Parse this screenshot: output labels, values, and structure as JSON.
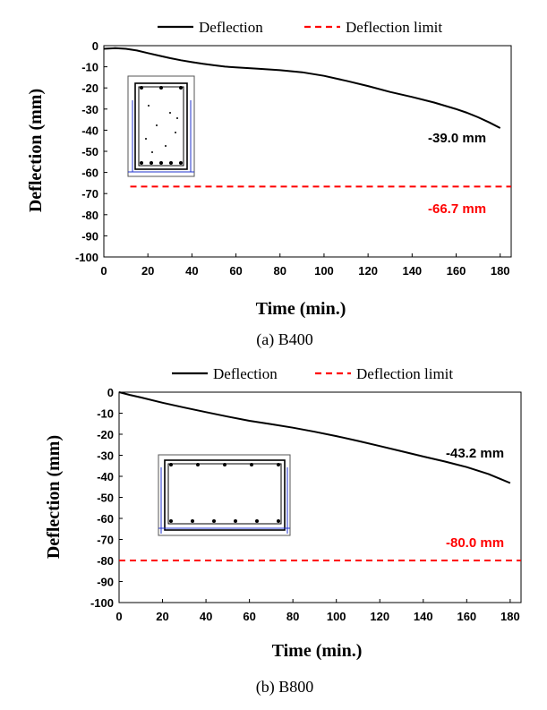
{
  "chart_data": [
    {
      "type": "line",
      "caption": "(a) B400",
      "xlabel": "Time (min.)",
      "ylabel": "Deflection (mm)",
      "xlim": [
        0,
        185
      ],
      "ylim": [
        -100,
        0
      ],
      "xticks": [
        0,
        20,
        40,
        60,
        80,
        100,
        120,
        140,
        160,
        180
      ],
      "yticks": [
        0,
        -10,
        -20,
        -30,
        -40,
        -50,
        -60,
        -70,
        -80,
        -90,
        -100
      ],
      "legend": {
        "placement": "top",
        "entries": [
          "Deflection",
          "Deflection limit"
        ]
      },
      "series": [
        {
          "name": "Deflection",
          "style": "solid",
          "color": "#000000",
          "x": [
            0,
            5,
            10,
            15,
            20,
            25,
            30,
            35,
            40,
            45,
            50,
            55,
            60,
            70,
            80,
            90,
            100,
            110,
            120,
            130,
            140,
            150,
            160,
            165,
            170,
            175,
            180
          ],
          "y": [
            -1.5,
            -1.2,
            -1.5,
            -2.3,
            -3.5,
            -4.7,
            -5.9,
            -6.9,
            -7.8,
            -8.6,
            -9.3,
            -9.9,
            -10.3,
            -10.9,
            -11.6,
            -12.6,
            -14.3,
            -16.6,
            -19.1,
            -21.9,
            -24.3,
            -26.9,
            -30.0,
            -31.8,
            -33.9,
            -36.3,
            -39.0
          ]
        },
        {
          "name": "Deflection limit",
          "style": "dashed",
          "color": "#ff0000",
          "x": [
            12,
            185
          ],
          "y": [
            -66.7,
            -66.7
          ]
        }
      ],
      "annotations": [
        {
          "text": "-39.0 mm",
          "color": "#000000"
        },
        {
          "text": "-66.7 mm",
          "color": "#ff0000"
        }
      ]
    },
    {
      "type": "line",
      "caption": "(b) B800",
      "xlabel": "Time (min.)",
      "ylabel": "Deflection (mm)",
      "xlim": [
        0,
        185
      ],
      "ylim": [
        -100,
        0
      ],
      "xticks": [
        0,
        20,
        40,
        60,
        80,
        100,
        120,
        140,
        160,
        180
      ],
      "yticks": [
        0,
        -10,
        -20,
        -30,
        -40,
        -50,
        -60,
        -70,
        -80,
        -90,
        -100
      ],
      "legend": {
        "placement": "top",
        "entries": [
          "Deflection",
          "Deflection limit"
        ]
      },
      "series": [
        {
          "name": "Deflection",
          "style": "solid",
          "color": "#000000",
          "x": [
            0,
            5,
            10,
            20,
            30,
            40,
            50,
            60,
            70,
            80,
            90,
            100,
            110,
            120,
            130,
            140,
            150,
            160,
            170,
            175,
            180
          ],
          "y": [
            0,
            -1.3,
            -2.5,
            -5.0,
            -7.3,
            -9.5,
            -11.6,
            -13.6,
            -15.2,
            -16.9,
            -18.8,
            -20.9,
            -23.2,
            -25.6,
            -28.1,
            -30.6,
            -33.0,
            -35.6,
            -38.9,
            -41.0,
            -43.2
          ]
        },
        {
          "name": "Deflection limit",
          "style": "dashed",
          "color": "#ff0000",
          "x": [
            0,
            185
          ],
          "y": [
            -80.0,
            -80.0
          ]
        }
      ],
      "annotations": [
        {
          "text": "-43.2 mm",
          "color": "#000000"
        },
        {
          "text": "-80.0 mm",
          "color": "#ff0000"
        }
      ]
    }
  ]
}
